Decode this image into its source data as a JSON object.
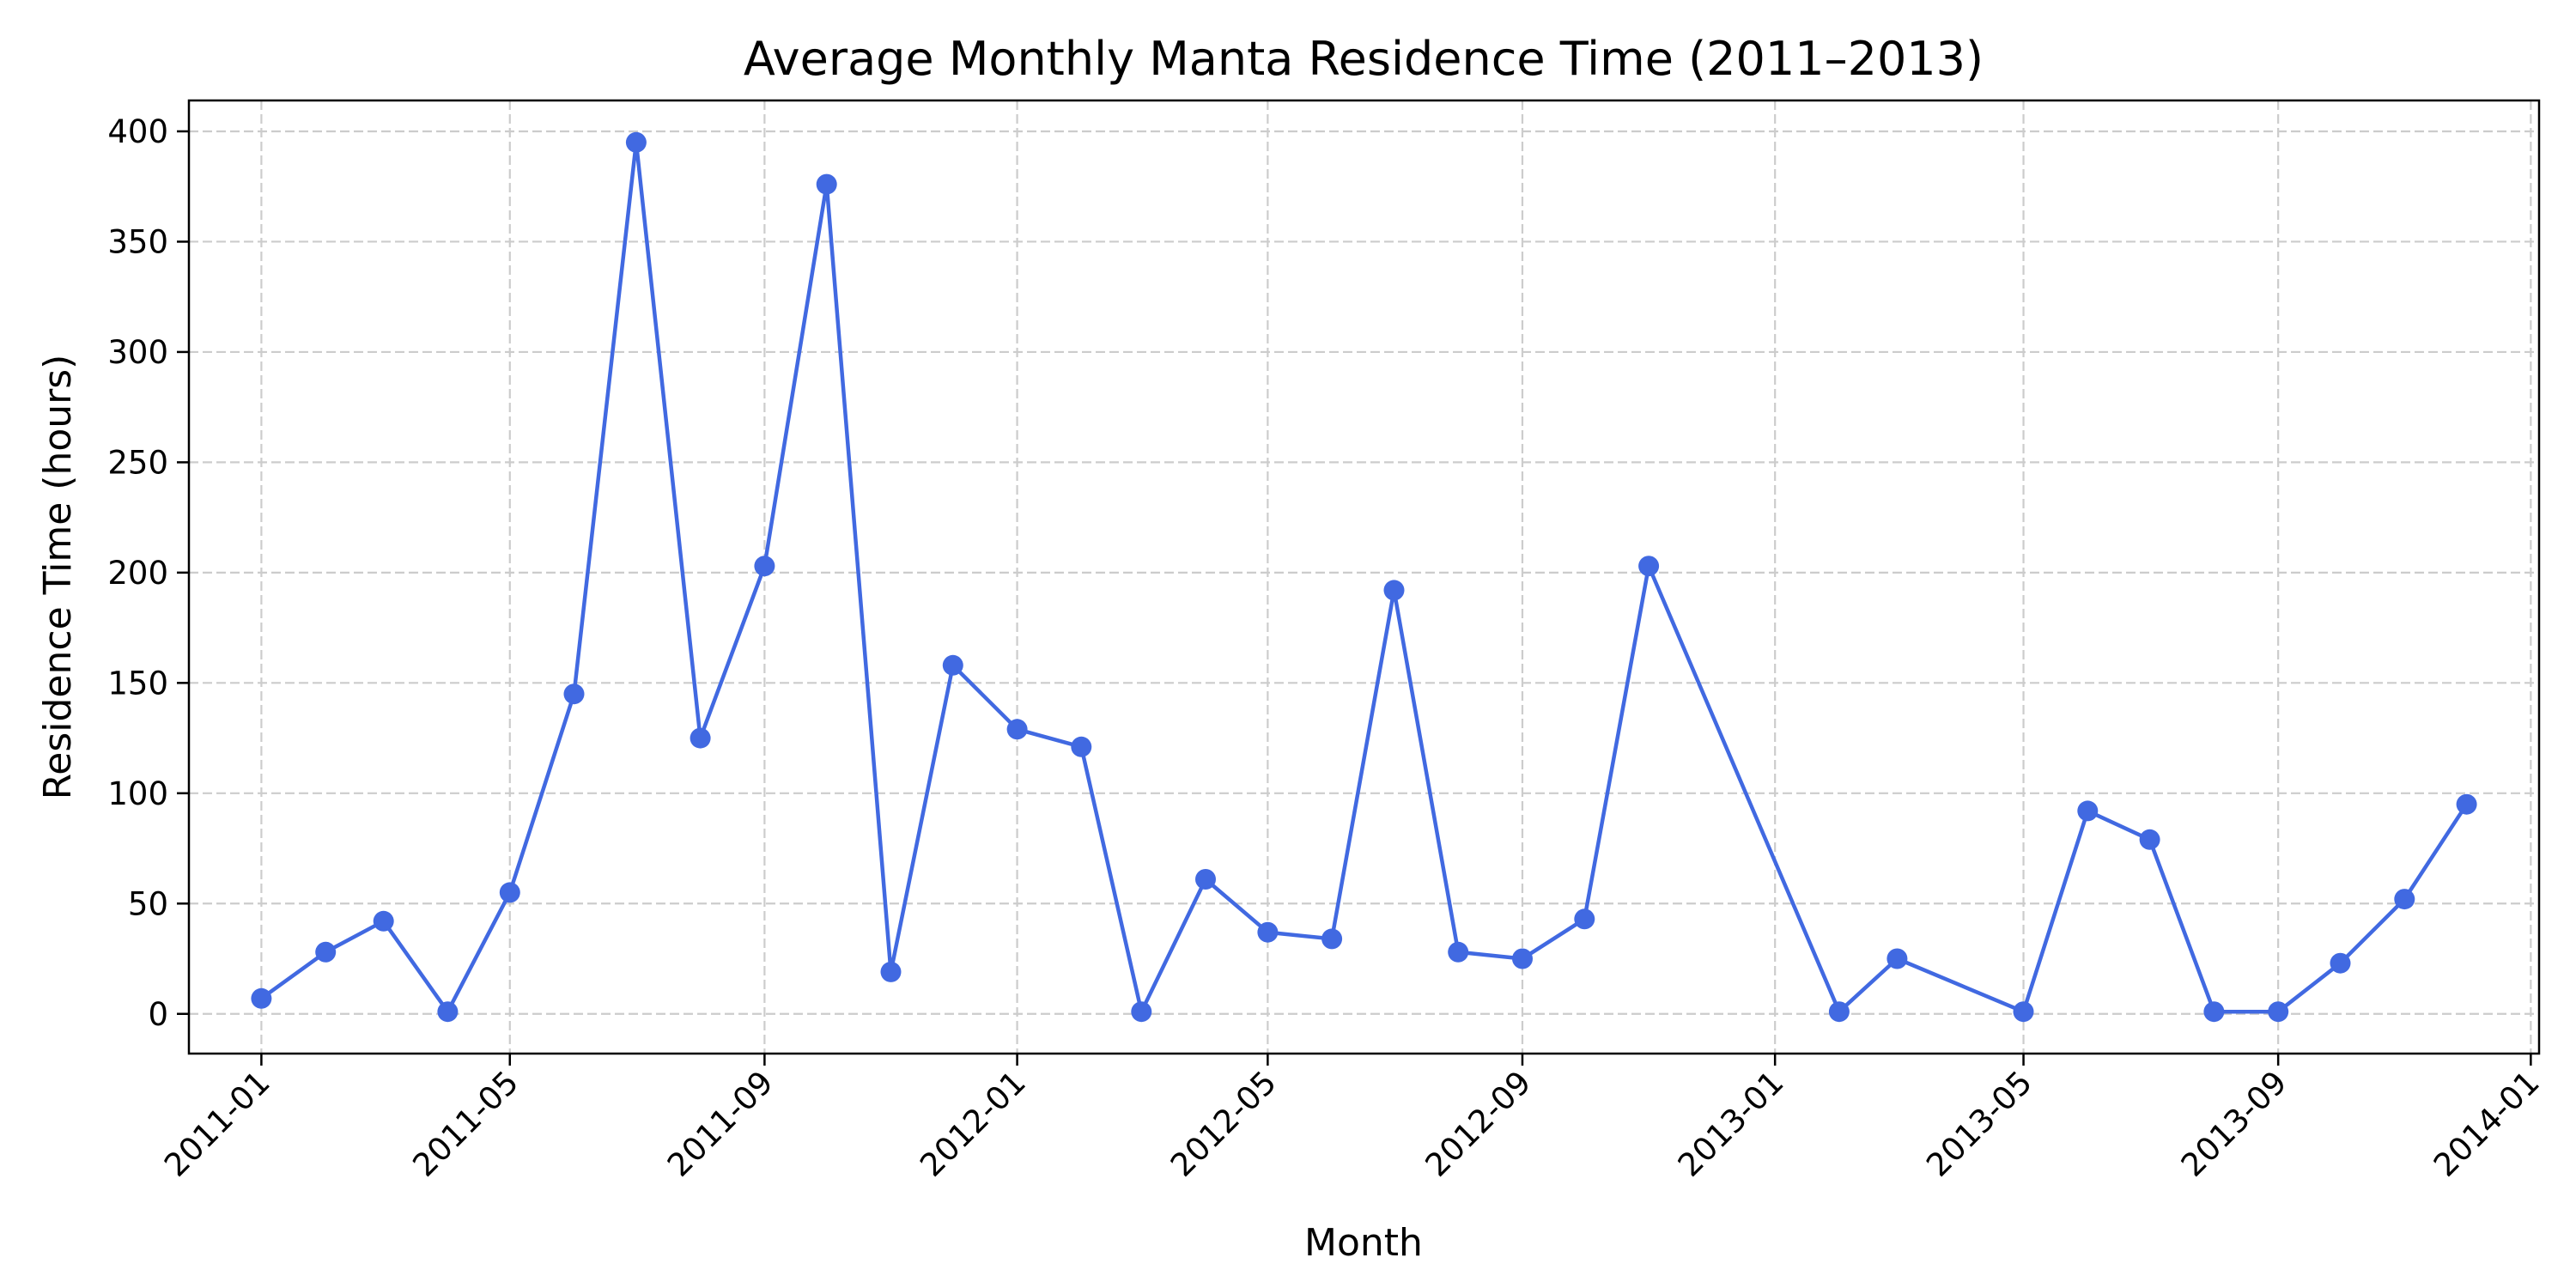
{
  "chart_data": {
    "type": "line",
    "title": "Average Monthly Manta Residence Time (2011–2013)",
    "xlabel": "Month",
    "ylabel": "Residence Time (hours)",
    "grid": true,
    "line_color": "#4169e1",
    "xlim": [
      "2010-11-27",
      "2014-01-05"
    ],
    "ylim": [
      -18,
      414
    ],
    "x_ticks": [
      "2011-01",
      "2011-05",
      "2011-09",
      "2012-01",
      "2012-05",
      "2012-09",
      "2013-01",
      "2013-05",
      "2013-09",
      "2014-01"
    ],
    "y_ticks": [
      0,
      50,
      100,
      150,
      200,
      250,
      300,
      350,
      400
    ],
    "series": [
      {
        "x": [
          "2011-01-01",
          "2011-02-01",
          "2011-03-01",
          "2011-04-01",
          "2011-05-01",
          "2011-06-01",
          "2011-07-01",
          "2011-08-01",
          "2011-09-01",
          "2011-10-01",
          "2011-11-01",
          "2011-12-01",
          "2012-01-01",
          "2012-02-01",
          "2012-03-01",
          "2012-04-01",
          "2012-05-01",
          "2012-06-01",
          "2012-07-01",
          "2012-08-01",
          "2012-09-01",
          "2012-10-01",
          "2012-11-01",
          "2013-02-01",
          "2013-03-01",
          "2013-05-01",
          "2013-06-01",
          "2013-07-01",
          "2013-08-01",
          "2013-09-01",
          "2013-10-01",
          "2013-11-01",
          "2013-12-01"
        ],
        "values": [
          7,
          28,
          42,
          1,
          55,
          145,
          395,
          125,
          203,
          376,
          19,
          158,
          129,
          121,
          1,
          61,
          37,
          34,
          192,
          28,
          25,
          43,
          203,
          1,
          25,
          1,
          92,
          79,
          1,
          1,
          23,
          52,
          95
        ]
      }
    ]
  }
}
